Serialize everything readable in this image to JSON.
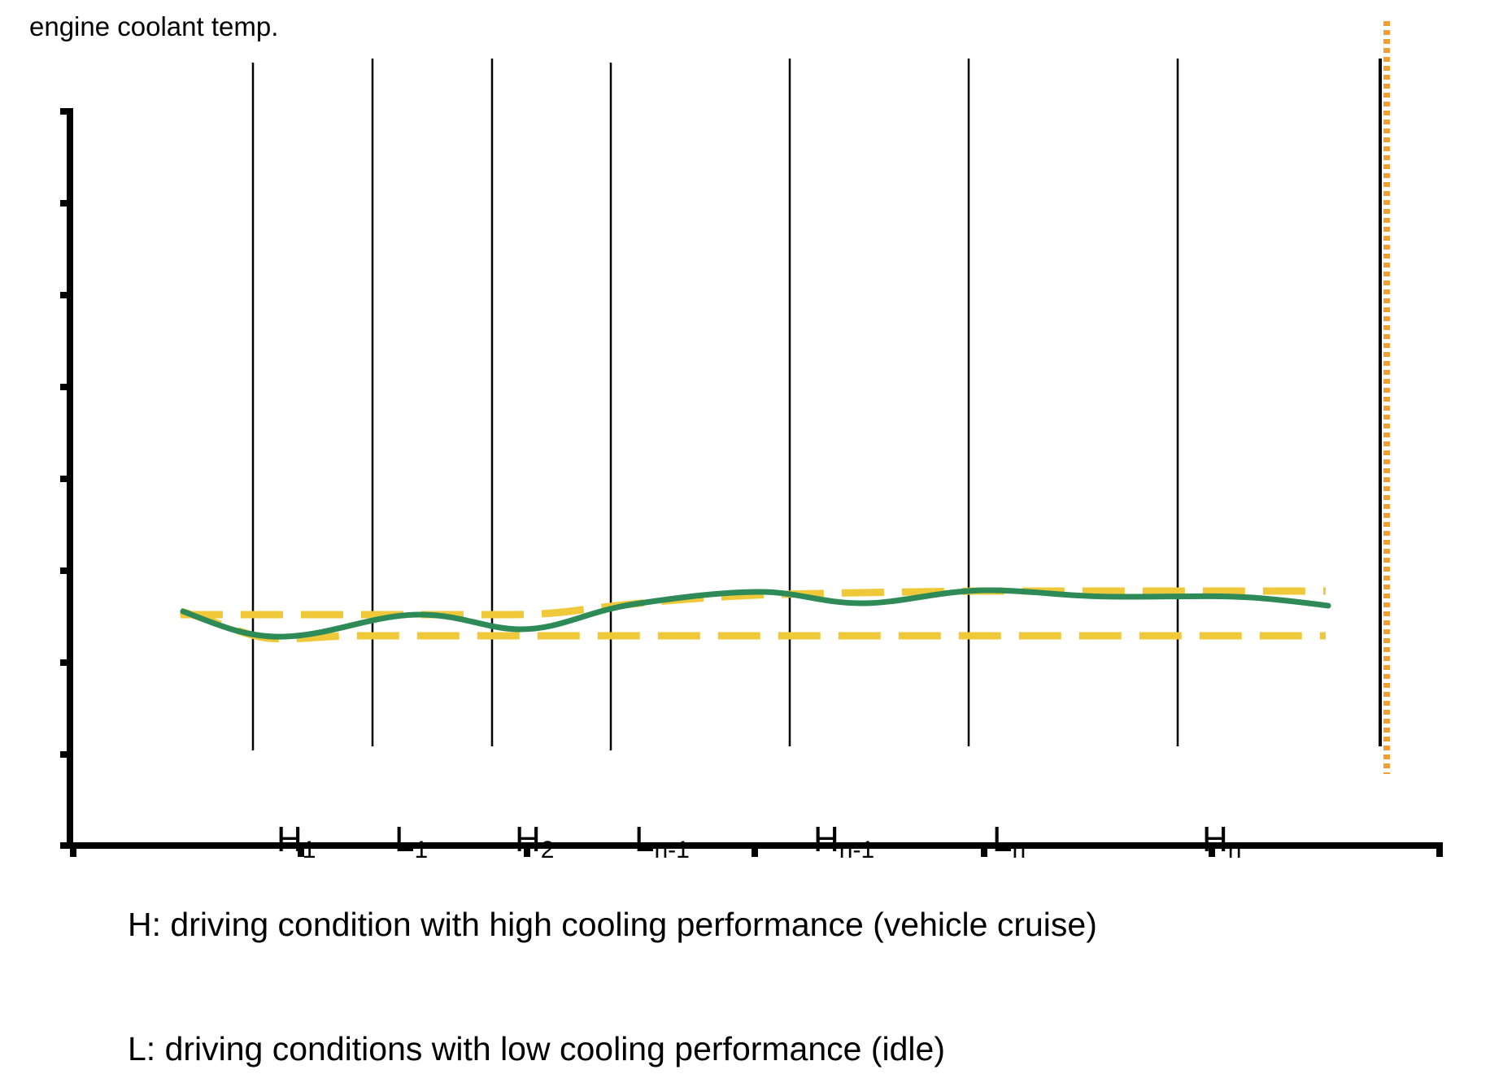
{
  "title": "engine coolant temp.",
  "segments": [
    {
      "letter": "H",
      "sub": "1"
    },
    {
      "letter": "L",
      "sub": "1"
    },
    {
      "letter": "H",
      "sub": "2"
    },
    {
      "letter": "L",
      "sub": "n-1"
    },
    {
      "letter": "H",
      "sub": "n-1"
    },
    {
      "letter": "L",
      "sub": "n"
    },
    {
      "letter": "H",
      "sub": "n"
    }
  ],
  "legend": {
    "h": "H: driving condition with high cooling performance (vehicle cruise)",
    "l": "L: driving conditions with low cooling performance (idle)"
  },
  "colors": {
    "axis": "#000000",
    "temperature_curve": "#2e8b57",
    "band_limits": "#f0c93a",
    "end_marker": "#f0a030"
  }
}
